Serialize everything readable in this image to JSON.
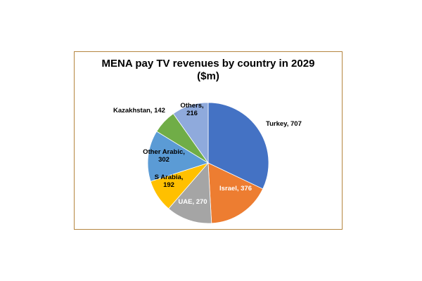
{
  "chart_data": {
    "type": "pie",
    "title": "MENA pay TV revenues by country in 2029",
    "subtitle": "($m)",
    "slices": [
      {
        "label": "Turkey, 707",
        "name": "Turkey",
        "value": 707,
        "color": "#4472c4"
      },
      {
        "label": "Israel, 376",
        "name": "Israel",
        "value": 376,
        "color": "#ed7d31"
      },
      {
        "label": "UAE, 270",
        "name": "UAE",
        "value": 270,
        "color": "#a5a5a5"
      },
      {
        "label": "S Arabia, 192",
        "name": "S Arabia",
        "value": 192,
        "color": "#ffc000"
      },
      {
        "label": "Other Arabic, 302",
        "name": "Other Arabic",
        "value": 302,
        "color": "#5b9bd5"
      },
      {
        "label": "Kazakhstan, 142",
        "name": "Kazakhstan",
        "value": 142,
        "color": "#70ad47"
      },
      {
        "label": "Others, 216",
        "name": "Others",
        "value": 216,
        "color": "#8faadc"
      }
    ]
  }
}
